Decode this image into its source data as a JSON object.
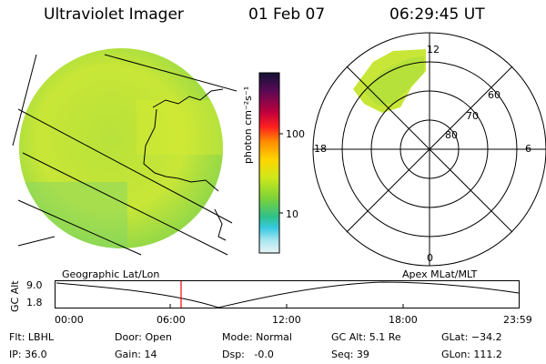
{
  "header": {
    "instrument": "Ultraviolet Imager",
    "date": "01 Feb 07",
    "time": "06:29:45 UT"
  },
  "colorbar": {
    "unit_label": "photon cm⁻²s⁻¹",
    "ticks": [
      "100",
      "10"
    ],
    "colors": [
      "#111133",
      "#5a0a55",
      "#c0003c",
      "#ff2020",
      "#ff8a00",
      "#ffd400",
      "#cfe81a",
      "#79d23a",
      "#2fc08c",
      "#38c9e0",
      "#a8e6ef",
      "#e8f4f6"
    ]
  },
  "polar_plot": {
    "mlt_labels": {
      "top": "12",
      "bottom": "0",
      "left": "18",
      "right": "6"
    },
    "lat_labels": [
      "60",
      "70",
      "80"
    ]
  },
  "captions": {
    "left": "Geographic Lat/Lon",
    "right": "Apex MLat/MLT"
  },
  "altitude_plot": {
    "axis_title": "GC Alt",
    "y_ticks": [
      "9.0",
      "1.8"
    ],
    "x_ticks": [
      "00:00",
      "06:00",
      "12:00",
      "18:00",
      "23:59"
    ],
    "marker_color": "#ff0000"
  },
  "info": {
    "row1": [
      "Flt: LBHL",
      "Door: Open",
      "Mode: Normal",
      "GC Alt: 5.1 Re",
      "GLat: −34.2"
    ],
    "row2": [
      "IP: 36.0",
      "Gain: 14",
      "Dsp:   -0.0",
      "Seq: 39",
      "GLon: 111.2"
    ]
  }
}
